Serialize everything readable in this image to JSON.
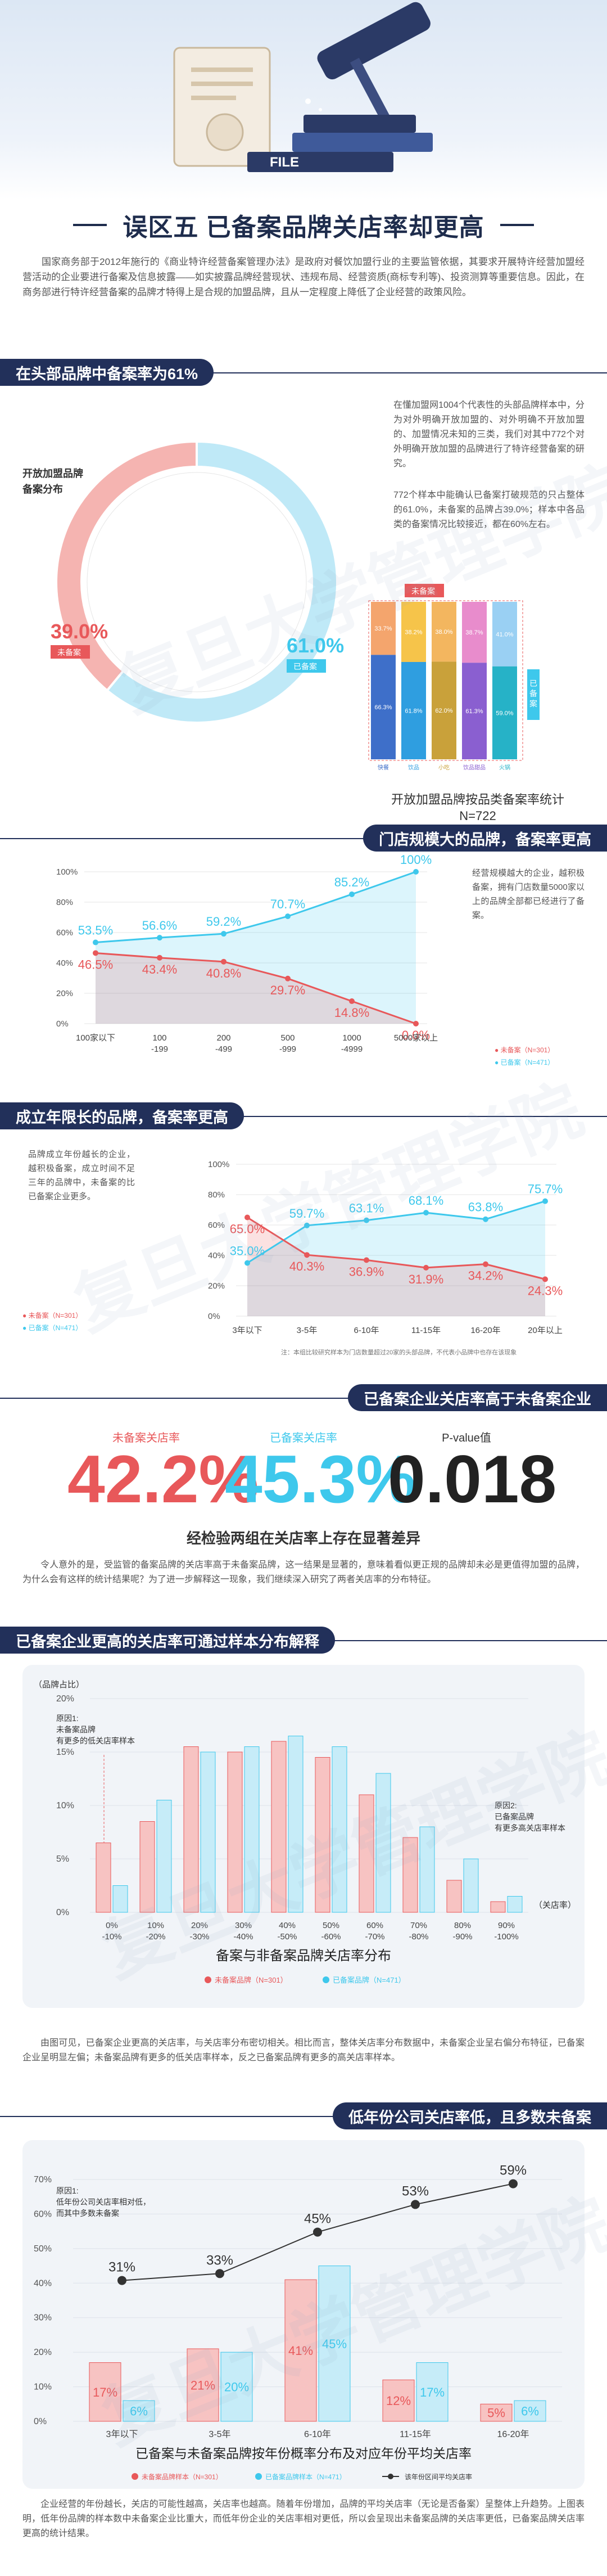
{
  "title": "误区五  已备案品牌关店率却更高",
  "intro": "国家商务部于2012年施行的《商业特许经营备案管理办法》是政府对餐饮加盟行业的主要监管依据，其要求开展特许经营加盟经营活动的企业要进行备案及信息披露——如实披露品牌经营现状、违规布局、经营资质(商标专利等)、投资测算等重要信息。因此，在商务部进行特许经营备案的品牌才特得上是合规的加盟品牌，且从一定程度上降低了企业经营的政策风险。",
  "colors": {
    "red": "#e8585a",
    "blue": "#3ec8ec",
    "navy": "#22305a"
  },
  "sections": {
    "s1": {
      "heading": "在头部品牌中备案率为61%",
      "text1": "在懂加盟网1004个代表性的头部品牌样本中，分为对外明确开放加盟的、对外明确不开放加盟的、加盟情况未知的三类，我们对其中772个对外明确开放加盟的品牌进行了特许经营备案的研究。",
      "text2": "772个样本中能确认已备案打破规范的只占整体的61.0%，未备案的品牌占39.0%；样本中各品类的备案情况比较接近，都在60%左右。",
      "pie_title": "开放加盟品牌\n备案分布",
      "pie_red_label": "39.0%",
      "pie_red_tag": "未备案",
      "pie_blue_label": "61.0%",
      "pie_blue_tag": "已备案",
      "bar_caption": "开放加盟品牌按品类备案率统计",
      "bar_n": "N=722",
      "bar_top_tag": "未备案",
      "bar_side_tag": "已备案"
    },
    "s2": {
      "heading": "门店规模大的品牌，备案率更高",
      "text": "经营规模越大的企业，越积极备案，拥有门店数量5000家以上的品牌全部都已经进行了备案。",
      "legend_red": "未备案（N=301）",
      "legend_blue": "已备案（N=471）"
    },
    "s3": {
      "heading": "成立年限长的品牌，备案率更高",
      "text": "品牌成立年份越长的企业，越积极备案，成立时间不足三年的品牌中，未备案的比已备案企业更多。",
      "legend_red": "未备案（N=301）",
      "legend_blue": "已备案（N=471）",
      "note": "注：本组比较研究样本为门店数量超过20家的头部品牌，不代表小品牌中也存在该现象"
    },
    "s4": {
      "heading": "已备案企业关店率高于未备案企业",
      "stats": [
        {
          "label": "未备案关店率",
          "value": "42.2%"
        },
        {
          "label": "已备案关店率",
          "value": "45.3%"
        },
        {
          "label": "P-value值",
          "value": "0.018"
        }
      ],
      "subtitle": "经检验两组在关店率上存在显著差异",
      "text": "令人意外的是，受监管的备案品牌的关店率高于未备案品牌，这一结果是显著的，意味着看似更正规的品牌却未必是更值得加盟的品牌，为什么会有这样的统计结果呢？为了进一步解释这一现象，我们继续深入研究了两者关店率的分布特征。"
    },
    "s5": {
      "heading": "已备案企业更高的关店率可通过样本分布解释",
      "y_title": "（品牌占比）",
      "x_title": "（关店率）",
      "note1": "原因1:\n未备案品牌\n有更多的低关店率样本",
      "note2": "原因2:\n已备案品牌\n有更多高关店率样本",
      "caption": "备案与非备案品牌关店率分布",
      "legend_red": "未备案品牌（N=301）",
      "legend_blue": "已备案品牌（N=471）",
      "text": "由图可见，已备案企业更高的关店率，与关店率分布密切相关。相比而言，整体关店率分布数据中，未备案企业呈右偏分布特征，已备案企业呈明显左偏；未备案品牌有更多的低关店率样本，反之已备案品牌有更多的高关店率样本。"
    },
    "s6": {
      "heading": "低年份公司关店率低，且多数未备案",
      "note1": "原因1:\n低年份公司关店率相对低，\n而其中多数未备案",
      "caption": "已备案与未备案品牌按年份概率分布及对应年份平均关店率",
      "legend_red": "未备案品牌样本（N=301）",
      "legend_blue": "已备案品牌样本（N=471）",
      "legend_line": "该年份区间平均关店率",
      "text": "企业经营的年份越长，关店的可能性越高，关店率也越高。随着年份增加，品牌的平均关店率（无论是否备案）呈整体上升趋势。上图表明，低年份品牌的样本数中未备案企业比重大，而低年份企业的关店率相对更低，所以会呈现出未备案品牌的关店率更低，已备案品牌关店率更高的统计结果。"
    }
  },
  "chart_data": [
    {
      "type": "pie",
      "title": "开放加盟品牌备案分布",
      "slices": [
        {
          "name": "未备案",
          "value": 39.0
        },
        {
          "name": "已备案",
          "value": 61.0
        }
      ]
    },
    {
      "type": "bar",
      "title": "开放加盟品牌按品类备案率统计",
      "categories": [
        "快餐",
        "饮品",
        "小吃",
        "饮品甜品",
        "火锅"
      ],
      "series": [
        {
          "name": "未备案",
          "values": [
            33.7,
            38.2,
            38.0,
            38.7,
            41.0
          ]
        },
        {
          "name": "已备案",
          "values": [
            66.3,
            61.8,
            62.0,
            61.3,
            59.0
          ]
        }
      ],
      "ylim": [
        0,
        100
      ]
    },
    {
      "type": "area",
      "categories": [
        "100家以下",
        "100-199",
        "200-499",
        "500-999",
        "1000-4999",
        "5000家以上"
      ],
      "series": [
        {
          "name": "未备案（N=301）",
          "values": [
            46.5,
            43.4,
            40.8,
            29.7,
            14.8,
            0.0
          ]
        },
        {
          "name": "已备案（N=471）",
          "values": [
            53.5,
            56.6,
            59.2,
            70.7,
            85.2,
            100
          ]
        }
      ],
      "yticks": [
        "0%",
        "20%",
        "40%",
        "60%",
        "80%",
        "100%"
      ],
      "ylim": [
        0,
        100
      ]
    },
    {
      "type": "area",
      "categories": [
        "3年以下",
        "3-5年",
        "6-10年",
        "11-15年",
        "16-20年",
        "20年以上"
      ],
      "series": [
        {
          "name": "未备案（N=301）",
          "values": [
            65.0,
            40.3,
            36.9,
            31.9,
            34.2,
            24.3
          ]
        },
        {
          "name": "已备案（N=471）",
          "values": [
            35.0,
            59.7,
            63.1,
            68.1,
            63.8,
            75.7
          ]
        }
      ],
      "yticks": [
        "0%",
        "20%",
        "40%",
        "60%",
        "80%",
        "100%"
      ],
      "ylim": [
        0,
        100
      ]
    },
    {
      "type": "bar",
      "title": "备案与非备案品牌关店率分布",
      "categories": [
        "0%-10%",
        "10%-20%",
        "20%-30%",
        "30%-40%",
        "40%-50%",
        "50%-60%",
        "60%-70%",
        "70%-80%",
        "80%-90%",
        "90%-100%"
      ],
      "series": [
        {
          "name": "未备案品牌（N=301）",
          "values": [
            6.5,
            8.5,
            15.5,
            15.0,
            16.0,
            14.5,
            11.0,
            7.0,
            3.0,
            1.0
          ]
        },
        {
          "name": "已备案品牌（N=471）",
          "values": [
            2.5,
            10.5,
            15.0,
            15.5,
            16.5,
            15.5,
            13.0,
            8.0,
            5.0,
            1.5
          ]
        }
      ],
      "yticks": [
        "0%",
        "5%",
        "10%",
        "15%",
        "20%"
      ],
      "ylim": [
        0,
        20
      ]
    },
    {
      "type": "bar",
      "title": "已备案与未备案品牌按年份概率分布及对应年份平均关店率",
      "categories": [
        "3年以下",
        "3-5年",
        "6-10年",
        "11-15年",
        "16-20年"
      ],
      "series": [
        {
          "name": "未备案品牌样本（N=301）",
          "values": [
            17,
            21,
            41,
            12,
            5
          ]
        },
        {
          "name": "已备案品牌样本（N=471）",
          "values": [
            6,
            20,
            45,
            17,
            6
          ]
        },
        {
          "name": "该年份区间平均关店率",
          "values": [
            31,
            33,
            45,
            53,
            59
          ]
        }
      ],
      "yticks": [
        "0%",
        "10%",
        "20%",
        "30%",
        "40%",
        "50%",
        "60%",
        "70%"
      ],
      "ylim": [
        0,
        70
      ]
    }
  ]
}
